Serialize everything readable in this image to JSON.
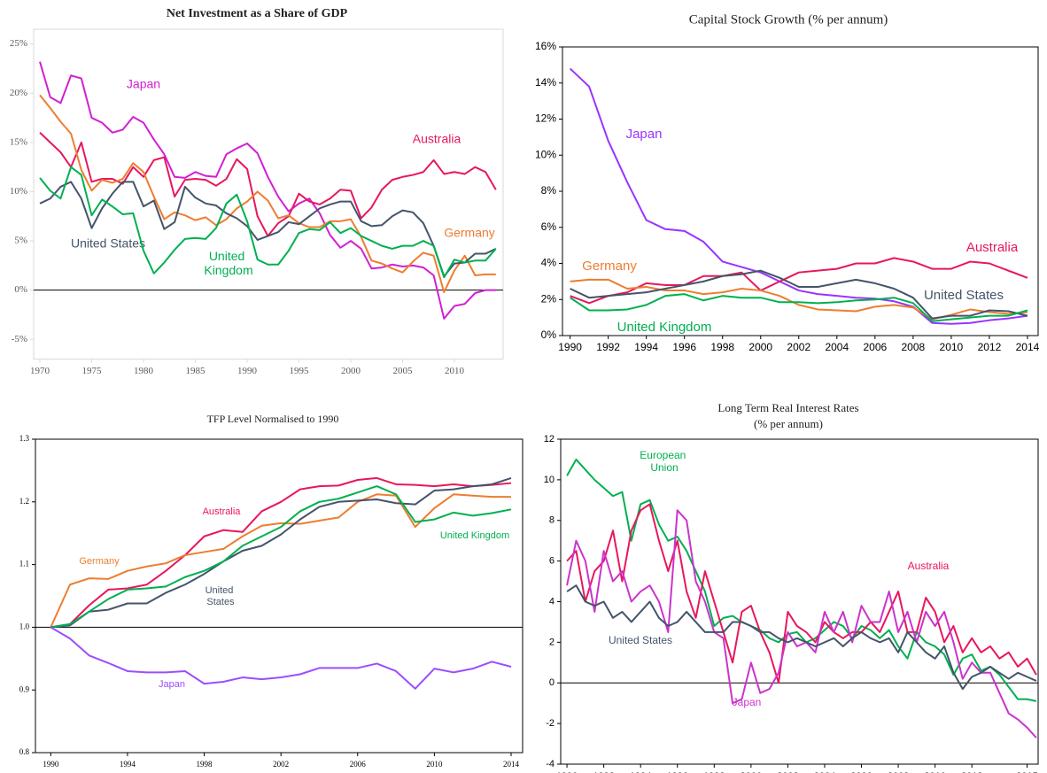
{
  "chart_data": [
    {
      "type": "line",
      "title": "Net Investment as a Share of GDP",
      "x": [
        1970,
        1971,
        1972,
        1973,
        1974,
        1975,
        1976,
        1977,
        1978,
        1979,
        1980,
        1981,
        1982,
        1983,
        1984,
        1985,
        1986,
        1987,
        1988,
        1989,
        1990,
        1991,
        1992,
        1993,
        1994,
        1995,
        1996,
        1997,
        1998,
        1999,
        2000,
        2001,
        2002,
        2003,
        2004,
        2005,
        2006,
        2007,
        2008,
        2009,
        2010,
        2011,
        2012,
        2013,
        2014
      ],
      "xlim": [
        1969.4,
        2014.7
      ],
      "xticks": [
        1970,
        1975,
        1980,
        1985,
        1990,
        1995,
        2000,
        2005,
        2010
      ],
      "ylim": [
        -7,
        26.5
      ],
      "yticks": [
        {
          "value": -5,
          "label": "-5%"
        },
        {
          "value": 0,
          "label": "0%"
        },
        {
          "value": 5,
          "label": "5%"
        },
        {
          "value": 10,
          "label": "10%"
        },
        {
          "value": 15,
          "label": "15%"
        },
        {
          "value": 20,
          "label": "20%"
        },
        {
          "value": 25,
          "label": "25%"
        }
      ],
      "reference_line": 0,
      "series": [
        {
          "name": "Japan",
          "color": "#d21fd2",
          "values": [
            23.2,
            19.6,
            19,
            21.8,
            21.5,
            17.5,
            17,
            16,
            16.3,
            17.6,
            17,
            15.3,
            13.8,
            11.5,
            11.4,
            12,
            11.6,
            11.5,
            13.8,
            14.4,
            14.9,
            13.9,
            11.5,
            9.5,
            8,
            8.8,
            9.3,
            7.8,
            5.6,
            4.3,
            5,
            4.2,
            2.2,
            2.3,
            2.6,
            2.4,
            2.5,
            2.3,
            1.5,
            -2.9,
            -1.6,
            -1.4,
            -0.3,
            0,
            0
          ]
        },
        {
          "name": "Australia",
          "color": "#e8175d",
          "values": [
            16,
            15,
            14,
            12.5,
            15,
            11,
            11.3,
            11.3,
            10.8,
            12.5,
            11.5,
            13.2,
            13.5,
            9.5,
            11.2,
            11.3,
            11.2,
            10.6,
            11.3,
            13.3,
            12.3,
            7.5,
            5.5,
            6.8,
            7.5,
            9.8,
            9,
            8.7,
            9.3,
            10.2,
            10.1,
            7.3,
            8.4,
            10.2,
            11.2,
            11.5,
            11.7,
            12,
            13.2,
            11.8,
            12,
            11.8,
            12.5,
            12,
            10.2
          ]
        },
        {
          "name": "Germany",
          "color": "#ed7d31",
          "values": [
            19.8,
            18.5,
            17.1,
            15.9,
            12.2,
            10.1,
            11.2,
            10.9,
            11.3,
            12.9,
            12,
            9.5,
            7.2,
            7.9,
            7.6,
            7.1,
            7.4,
            6.6,
            7.2,
            8.3,
            9,
            10,
            9.1,
            7.3,
            7.6,
            6.8,
            6.4,
            6.4,
            7,
            7,
            7.2,
            5.4,
            3,
            2.7,
            2.2,
            1.8,
            2.9,
            3.8,
            3.5,
            -0.2,
            2,
            3.5,
            1.5,
            1.6,
            1.6
          ]
        },
        {
          "name": "United States",
          "color": "#44546a",
          "values": [
            8.8,
            9.3,
            10.5,
            11,
            9.3,
            6.3,
            8.3,
            9.8,
            11,
            11,
            8.5,
            9.1,
            6.2,
            6.9,
            10.5,
            9.4,
            8.8,
            8.6,
            7.8,
            7.3,
            6.5,
            5.1,
            5.5,
            5.9,
            6.9,
            6.7,
            7.5,
            8.3,
            8.7,
            9,
            9,
            7,
            6.5,
            6.6,
            7.5,
            8.1,
            7.9,
            6.8,
            4.5,
            1.4,
            2.7,
            2.8,
            3.7,
            3.7,
            4.2
          ]
        },
        {
          "name": "United Kingdom",
          "color": "#00b050",
          "values": [
            11.4,
            10.1,
            9.3,
            12.5,
            11.7,
            7.6,
            9.2,
            8.5,
            7.7,
            7.8,
            4,
            1.7,
            2.8,
            4.1,
            5.2,
            5.3,
            5.2,
            6.3,
            8.8,
            9.7,
            7,
            3.1,
            2.6,
            2.6,
            4,
            5.8,
            6.2,
            6.1,
            6.9,
            5.8,
            6.3,
            5.5,
            5,
            4.5,
            4.2,
            4.5,
            4.5,
            5,
            4.5,
            1.3,
            3.1,
            2.8,
            3,
            3,
            4.2
          ]
        }
      ]
    },
    {
      "type": "line",
      "title": "Capital Stock Growth (% per annum)",
      "x": [
        1990,
        1991,
        1992,
        1993,
        1994,
        1995,
        1996,
        1997,
        1998,
        1999,
        2000,
        2001,
        2002,
        2003,
        2004,
        2005,
        2006,
        2007,
        2008,
        2009,
        2010,
        2011,
        2012,
        2013,
        2014
      ],
      "xlim": [
        1989.6,
        2014.56
      ],
      "xticks": [
        1990,
        1992,
        1994,
        1996,
        1998,
        2000,
        2002,
        2004,
        2006,
        2008,
        2010,
        2012,
        2014
      ],
      "ylim": [
        0,
        16
      ],
      "yticks": [
        {
          "value": 0,
          "label": "0%"
        },
        {
          "value": 2,
          "label": "2%"
        },
        {
          "value": 4,
          "label": "4%"
        },
        {
          "value": 6,
          "label": "6%"
        },
        {
          "value": 8,
          "label": "8%"
        },
        {
          "value": 10,
          "label": "10%"
        },
        {
          "value": 12,
          "label": "12%"
        },
        {
          "value": 14,
          "label": "14%"
        },
        {
          "value": 16,
          "label": "16%"
        }
      ],
      "series": [
        {
          "name": "Japan",
          "color": "#9933ff",
          "values": [
            14.8,
            13.8,
            10.8,
            8.5,
            6.4,
            5.9,
            5.8,
            5.2,
            4.1,
            3.8,
            3.5,
            3,
            2.5,
            2.3,
            2.2,
            2.1,
            2.05,
            1.9,
            1.6,
            0.7,
            0.65,
            0.7,
            0.85,
            0.95,
            1.1
          ]
        },
        {
          "name": "Australia",
          "color": "#e8175d",
          "values": [
            2.2,
            1.8,
            2.2,
            2.4,
            2.9,
            2.8,
            2.8,
            3.3,
            3.3,
            3.5,
            2.5,
            3,
            3.5,
            3.6,
            3.7,
            4,
            4,
            4.3,
            4.1,
            3.7,
            3.7,
            4.1,
            4,
            3.6,
            3.2
          ]
        },
        {
          "name": "Germany",
          "color": "#ed7d31",
          "values": [
            3,
            3.1,
            3.1,
            2.6,
            2.7,
            2.5,
            2.5,
            2.3,
            2.4,
            2.6,
            2.5,
            2.2,
            1.7,
            1.45,
            1.4,
            1.35,
            1.6,
            1.7,
            1.55,
            0.9,
            1.15,
            1.45,
            1.3,
            1.2,
            1.3
          ]
        },
        {
          "name": "United States",
          "color": "#44546a",
          "values": [
            2.6,
            2.1,
            2.2,
            2.3,
            2.4,
            2.6,
            2.8,
            3,
            3.3,
            3.4,
            3.6,
            3.2,
            2.7,
            2.7,
            2.9,
            3.1,
            2.9,
            2.6,
            2.1,
            0.95,
            1.1,
            1.1,
            1.4,
            1.35,
            1.1
          ]
        },
        {
          "name": "United Kingdom",
          "color": "#00b050",
          "values": [
            2.1,
            1.4,
            1.4,
            1.45,
            1.7,
            2.2,
            2.3,
            1.95,
            2.2,
            2.1,
            2.1,
            1.85,
            1.85,
            1.8,
            1.85,
            1.95,
            2,
            2.1,
            1.8,
            0.8,
            0.9,
            1,
            1.1,
            1.1,
            1.4
          ]
        }
      ]
    },
    {
      "type": "line",
      "title": "TFP Level Normalised to 1990",
      "x": [
        1990,
        1991,
        1992,
        1993,
        1994,
        1995,
        1996,
        1997,
        1998,
        1999,
        2000,
        2001,
        2002,
        2003,
        2004,
        2005,
        2006,
        2007,
        2008,
        2009,
        2010,
        2011,
        2012,
        2013,
        2014
      ],
      "xlim": [
        1989.2,
        2014.6
      ],
      "xticks": [
        1990,
        1994,
        1998,
        2002,
        2006,
        2010,
        2014
      ],
      "ylim": [
        0.8,
        1.3
      ],
      "yticks": [
        0.8,
        0.9,
        {
          "value": 1,
          "label": "1.0"
        },
        1.1,
        1.2,
        1.3
      ],
      "reference_line": 1,
      "series": [
        {
          "name": "Australia",
          "color": "#e8175d",
          "values": [
            1,
            1.005,
            1.035,
            1.06,
            1.062,
            1.068,
            1.09,
            1.115,
            1.145,
            1.155,
            1.152,
            1.185,
            1.2,
            1.22,
            1.225,
            1.226,
            1.235,
            1.238,
            1.228,
            1.227,
            1.225,
            1.228,
            1.225,
            1.227,
            1.23
          ]
        },
        {
          "name": "Germany",
          "color": "#ed7d31",
          "values": [
            1,
            1.068,
            1.078,
            1.077,
            1.09,
            1.097,
            1.102,
            1.115,
            1.12,
            1.125,
            1.145,
            1.162,
            1.166,
            1.165,
            1.17,
            1.175,
            1.2,
            1.212,
            1.21,
            1.16,
            1.19,
            1.212,
            1.21,
            1.208,
            1.208
          ]
        },
        {
          "name": "United States",
          "color": "#44546a",
          "values": [
            1,
            1.003,
            1.025,
            1.028,
            1.038,
            1.038,
            1.055,
            1.068,
            1.085,
            1.105,
            1.122,
            1.13,
            1.148,
            1.172,
            1.192,
            1.2,
            1.202,
            1.204,
            1.198,
            1.196,
            1.218,
            1.22,
            1.225,
            1.228,
            1.238
          ]
        },
        {
          "name": "United Kingdom",
          "color": "#00b050",
          "values": [
            1,
            1.005,
            1.025,
            1.045,
            1.06,
            1.062,
            1.065,
            1.08,
            1.09,
            1.105,
            1.13,
            1.145,
            1.16,
            1.185,
            1.2,
            1.205,
            1.215,
            1.225,
            1.212,
            1.168,
            1.172,
            1.183,
            1.178,
            1.182,
            1.188
          ]
        },
        {
          "name": "Japan",
          "color": "#9b4dff",
          "values": [
            1,
            0.982,
            0.955,
            0.943,
            0.93,
            0.928,
            0.928,
            0.93,
            0.91,
            0.913,
            0.92,
            0.917,
            0.92,
            0.925,
            0.935,
            0.935,
            0.935,
            0.942,
            0.93,
            0.902,
            0.934,
            0.928,
            0.934,
            0.945,
            0.937
          ]
        }
      ]
    },
    {
      "type": "line",
      "title": "Long Term Real Interest Rates",
      "subtitle": "(% per annum)",
      "x": [
        1990,
        1990.5,
        1991,
        1991.5,
        1992,
        1992.5,
        1993,
        1993.5,
        1994,
        1994.5,
        1995,
        1995.5,
        1996,
        1996.5,
        1997,
        1997.5,
        1998,
        1998.5,
        1999,
        1999.5,
        2000,
        2000.5,
        2001,
        2001.5,
        2002,
        2002.5,
        2003,
        2003.5,
        2004,
        2004.5,
        2005,
        2005.5,
        2006,
        2006.5,
        2007,
        2007.5,
        2008,
        2008.5,
        2009,
        2009.5,
        2010,
        2010.5,
        2011,
        2011.5,
        2012,
        2012.5,
        2013,
        2013.5,
        2014,
        2014.5,
        2015,
        2015.5
      ],
      "xlim": [
        1989.66,
        2015.6
      ],
      "xticks": [
        1990,
        1992,
        1994,
        1996,
        1998,
        2000,
        2002,
        2004,
        2006,
        2008,
        2010,
        2012,
        2015
      ],
      "ylim": [
        -4,
        12
      ],
      "yticks": [
        -4,
        -2,
        0,
        2,
        4,
        6,
        8,
        10,
        12
      ],
      "reference_line": 0,
      "series": [
        {
          "name": "European Union",
          "color": "#00b050",
          "values": [
            10.2,
            11,
            10.5,
            10,
            9.6,
            9.2,
            9.4,
            7,
            8.8,
            9,
            7.8,
            7,
            7.2,
            6.5,
            5.5,
            4.5,
            2.8,
            3.2,
            3.3,
            3,
            2.8,
            2.6,
            2.2,
            2,
            2.4,
            2.5,
            2,
            2.2,
            2.6,
            3,
            2.8,
            2.2,
            2.8,
            2.6,
            2.2,
            2.6,
            1.8,
            1.2,
            2.5,
            2,
            1.8,
            1.4,
            0.4,
            1.2,
            1.4,
            0.6,
            0.8,
            0.4,
            -0.2,
            -0.8,
            -0.8,
            -0.9
          ]
        },
        {
          "name": "Australia",
          "color": "#e8175d",
          "values": [
            6,
            6.5,
            4,
            5.5,
            6,
            7.5,
            5,
            7.5,
            8.5,
            8.8,
            7,
            5.5,
            7,
            4.5,
            3.2,
            5.5,
            4,
            2.5,
            1,
            3.5,
            3.8,
            2.5,
            1.5,
            0,
            3.5,
            2.8,
            2.5,
            2,
            3,
            2.5,
            2.2,
            2.5,
            2.5,
            3,
            2.5,
            3.5,
            4.5,
            2.5,
            2.5,
            4.2,
            3.5,
            2,
            2.8,
            1.5,
            2.2,
            1.5,
            1.8,
            1.2,
            1.5,
            0.8,
            1.2,
            0.4
          ]
        },
        {
          "name": "Japan",
          "color": "#cc33cc",
          "values": [
            4.8,
            7,
            6,
            3.5,
            6.5,
            5,
            5.5,
            4,
            4.5,
            4.8,
            4,
            2.5,
            8.5,
            8,
            5,
            4,
            2.5,
            2.2,
            -1,
            -0.8,
            1,
            -0.5,
            -0.3,
            0.5,
            2.5,
            1.8,
            2,
            1.5,
            3.5,
            2.5,
            3.5,
            2,
            3.8,
            3,
            3,
            4.5,
            2.5,
            3.5,
            2,
            3.5,
            2.8,
            3.5,
            2,
            0.2,
            1,
            0.5,
            0.5,
            -0.5,
            -1.5,
            -1.8,
            -2.2,
            -2.7
          ]
        },
        {
          "name": "United States",
          "color": "#44546a",
          "values": [
            4.5,
            4.8,
            4,
            3.8,
            4,
            3.2,
            3.5,
            3,
            3.5,
            4,
            3.2,
            2.8,
            3,
            3.5,
            3,
            2.5,
            2.5,
            2.5,
            3,
            3,
            2.8,
            2.5,
            2.5,
            2.2,
            2,
            2.2,
            2,
            1.8,
            2,
            2.2,
            1.8,
            2.2,
            2.5,
            2.2,
            2,
            2.2,
            1.5,
            2.5,
            2,
            1.5,
            1.2,
            1.8,
            0.5,
            -0.3,
            0.3,
            0.5,
            0.8,
            0.5,
            0.2,
            0.5,
            0.3,
            0.1
          ]
        }
      ]
    }
  ]
}
